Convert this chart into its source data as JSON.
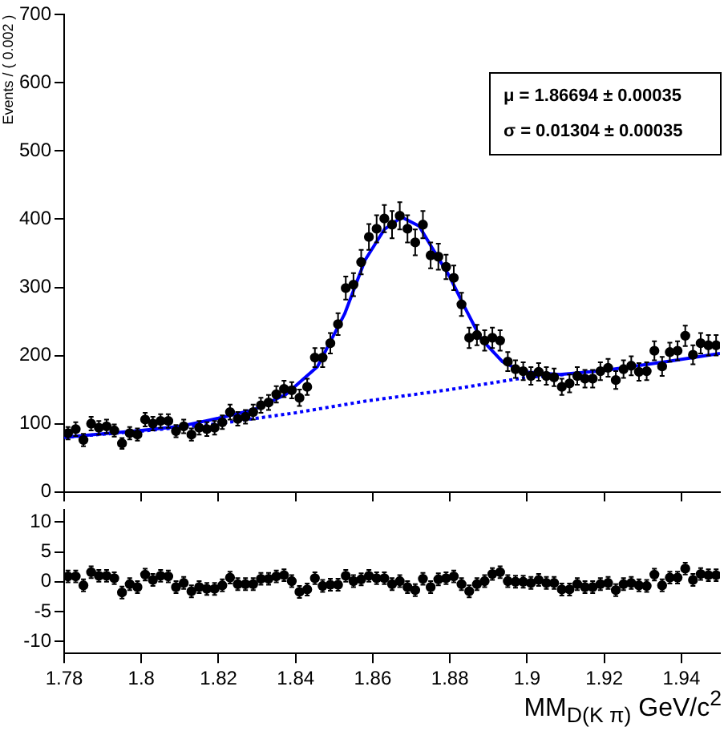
{
  "chart_data": [
    {
      "type": "scatter",
      "ylabel": "Events / ( 0.002 )",
      "annotations": [
        "μ = 1.86694 ± 0.00035",
        "σ = 0.01304 ± 0.00035"
      ],
      "x": [
        1.781,
        1.783,
        1.785,
        1.787,
        1.789,
        1.791,
        1.793,
        1.795,
        1.797,
        1.799,
        1.801,
        1.803,
        1.805,
        1.807,
        1.809,
        1.811,
        1.813,
        1.815,
        1.817,
        1.819,
        1.821,
        1.823,
        1.825,
        1.827,
        1.829,
        1.831,
        1.833,
        1.835,
        1.837,
        1.839,
        1.841,
        1.843,
        1.845,
        1.847,
        1.849,
        1.851,
        1.853,
        1.855,
        1.857,
        1.859,
        1.861,
        1.863,
        1.865,
        1.867,
        1.869,
        1.871,
        1.873,
        1.875,
        1.877,
        1.879,
        1.881,
        1.883,
        1.885,
        1.887,
        1.889,
        1.891,
        1.893,
        1.895,
        1.897,
        1.899,
        1.901,
        1.903,
        1.905,
        1.907,
        1.909,
        1.911,
        1.913,
        1.915,
        1.917,
        1.919,
        1.921,
        1.923,
        1.925,
        1.927,
        1.929,
        1.931,
        1.933,
        1.935,
        1.937,
        1.939,
        1.941,
        1.943,
        1.945,
        1.947,
        1.949
      ],
      "series": [
        {
          "type": "scatter",
          "color": "#000000",
          "marker": "circle",
          "values": [
            86,
            92,
            76,
            100,
            94,
            96,
            90,
            71,
            86,
            84,
            106,
            100,
            104,
            104,
            89,
            96,
            84,
            94,
            92,
            94,
            102,
            117,
            107,
            110,
            117,
            127,
            131,
            143,
            151,
            149,
            138,
            154,
            197,
            197,
            218,
            246,
            299,
            304,
            337,
            374,
            386,
            401,
            392,
            405,
            386,
            366,
            392,
            347,
            345,
            330,
            314,
            275,
            226,
            230,
            222,
            226,
            222,
            191,
            180,
            177,
            170,
            176,
            170,
            168,
            154,
            159,
            170,
            166,
            166,
            177,
            182,
            164,
            180,
            185,
            176,
            177,
            207,
            184,
            205,
            207,
            229,
            201,
            218,
            215,
            215
          ],
          "errors": [
            9,
            10,
            9,
            10,
            10,
            10,
            9,
            8,
            9,
            9,
            10,
            10,
            10,
            10,
            9,
            10,
            9,
            10,
            10,
            10,
            10,
            11,
            10,
            10,
            11,
            11,
            11,
            12,
            12,
            12,
            12,
            12,
            14,
            14,
            15,
            16,
            17,
            17,
            18,
            19,
            20,
            20,
            20,
            20,
            20,
            19,
            20,
            19,
            19,
            18,
            18,
            17,
            15,
            15,
            15,
            15,
            15,
            14,
            13,
            13,
            13,
            13,
            13,
            13,
            12,
            13,
            13,
            13,
            13,
            13,
            13,
            13,
            13,
            14,
            13,
            13,
            14,
            14,
            14,
            14,
            15,
            14,
            15,
            15,
            15
          ]
        },
        {
          "type": "line",
          "color": "#0000ff",
          "line_style": "solid",
          "x": [
            1.78,
            1.79,
            1.8,
            1.81,
            1.82,
            1.829,
            1.8375,
            1.8457,
            1.8527,
            1.858,
            1.863,
            1.8675,
            1.872,
            1.8757,
            1.8799,
            1.884,
            1.888,
            1.8936,
            1.899,
            1.9085,
            1.92,
            1.936,
            1.95
          ],
          "values": [
            80,
            85,
            90,
            96,
            108,
            120,
            143,
            184,
            261,
            340,
            385,
            403,
            390,
            355,
            316,
            269,
            225,
            191,
            176,
            172,
            178,
            191,
            203
          ]
        },
        {
          "type": "line",
          "color": "#0000ff",
          "line_style": "dotted",
          "x": [
            1.78,
            1.8,
            1.82,
            1.84,
            1.858,
            1.88,
            1.9,
            1.91
          ],
          "values": [
            80,
            89,
            100,
            116,
            133,
            150,
            168,
            172
          ]
        }
      ],
      "xlim": [
        1.78,
        1.95
      ],
      "xticks": [
        1.78,
        1.8,
        1.82,
        1.84,
        1.86,
        1.88,
        1.9,
        1.92,
        1.94
      ],
      "ylim": [
        0,
        700
      ],
      "yticks": [
        0,
        100,
        200,
        300,
        400,
        500,
        600,
        700
      ],
      "tick_labels": "y"
    },
    {
      "type": "scatter",
      "xlabel": "MM$_{D(K π)}$ GeV/c$^{2}$",
      "x": [
        1.781,
        1.783,
        1.785,
        1.787,
        1.789,
        1.791,
        1.793,
        1.795,
        1.797,
        1.799,
        1.801,
        1.803,
        1.805,
        1.807,
        1.809,
        1.811,
        1.813,
        1.815,
        1.817,
        1.819,
        1.821,
        1.823,
        1.825,
        1.827,
        1.829,
        1.831,
        1.833,
        1.835,
        1.837,
        1.839,
        1.841,
        1.843,
        1.845,
        1.847,
        1.849,
        1.851,
        1.853,
        1.855,
        1.857,
        1.859,
        1.861,
        1.863,
        1.865,
        1.867,
        1.869,
        1.871,
        1.873,
        1.875,
        1.877,
        1.879,
        1.881,
        1.883,
        1.885,
        1.887,
        1.889,
        1.891,
        1.893,
        1.895,
        1.897,
        1.899,
        1.901,
        1.903,
        1.905,
        1.907,
        1.909,
        1.911,
        1.913,
        1.915,
        1.917,
        1.919,
        1.921,
        1.923,
        1.925,
        1.927,
        1.929,
        1.931,
        1.933,
        1.935,
        1.937,
        1.939,
        1.941,
        1.943,
        1.945,
        1.947,
        1.949
      ],
      "series": [
        {
          "type": "scatter",
          "color": "#000000",
          "marker": "circle",
          "values": [
            0.9,
            0.9,
            -0.6,
            1.6,
            1.0,
            1.0,
            0.6,
            -1.8,
            -0.4,
            -0.9,
            1.2,
            0.3,
            1.0,
            0.9,
            -0.9,
            -0.2,
            -1.6,
            -0.9,
            -1.2,
            -1.2,
            -0.6,
            0.7,
            -0.4,
            -0.4,
            -0.4,
            0.5,
            0.5,
            0.9,
            1.1,
            0.1,
            -1.7,
            -1.3,
            0.6,
            -0.7,
            -0.5,
            -0.5,
            1.0,
            0.1,
            0.4,
            1.0,
            0.6,
            0.6,
            -0.4,
            0.1,
            -0.9,
            -1.4,
            0.5,
            -0.9,
            0.4,
            0.6,
            0.9,
            -0.4,
            -1.6,
            -0.4,
            0.1,
            1.3,
            1.6,
            0.1,
            0,
            0,
            -0.2,
            0.3,
            -0.2,
            -0.2,
            -1.3,
            -1.3,
            -0.4,
            -0.9,
            -0.9,
            -0.4,
            -0.2,
            -1.4,
            -0.4,
            -0.2,
            -0.6,
            -0.7,
            1.2,
            -0.6,
            0.7,
            0.7,
            2.2,
            0.3,
            1.3,
            1.1,
            1.1
          ],
          "errors": [
            1,
            1,
            1,
            1,
            1,
            1,
            1,
            1,
            1,
            1,
            1,
            1,
            1,
            1,
            1,
            1,
            1,
            1,
            1,
            1,
            1,
            1,
            1,
            1,
            1,
            1,
            1,
            1,
            1,
            1,
            1,
            1,
            1,
            1,
            1,
            1,
            1,
            1,
            1,
            1,
            1,
            1,
            1,
            1,
            1,
            1,
            1,
            1,
            1,
            1,
            1,
            1,
            1,
            1,
            1,
            1,
            1,
            1,
            1,
            1,
            1,
            1,
            1,
            1,
            1,
            1,
            1,
            1,
            1,
            1,
            1,
            1,
            1,
            1,
            1,
            1,
            1,
            1,
            1,
            1,
            1,
            1,
            1,
            1,
            1
          ]
        }
      ],
      "xlim": [
        1.78,
        1.95
      ],
      "xticks": [
        1.78,
        1.8,
        1.82,
        1.84,
        1.86,
        1.88,
        1.9,
        1.92,
        1.94
      ],
      "ylim": [
        -12,
        12
      ],
      "yticks": [
        -10,
        -5,
        0,
        5,
        10
      ]
    }
  ]
}
